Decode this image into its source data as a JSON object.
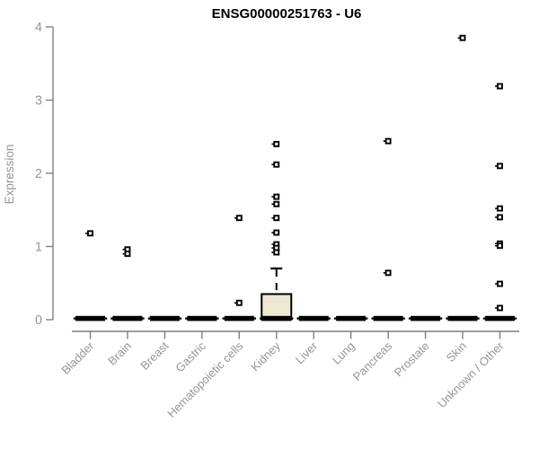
{
  "header": {
    "title": "ENSG00000251763 - U6"
  },
  "chart_data": {
    "type": "box",
    "title": "ENSG00000251763 - U6",
    "xlabel": "",
    "ylabel": "Expression",
    "ylim": [
      0,
      4
    ],
    "yticks": [
      0,
      1,
      2,
      3,
      4
    ],
    "grid": false,
    "legend": "none",
    "categories": [
      "Bladder",
      "Brain",
      "Breast",
      "Gastric",
      "Hematopoietic cells",
      "Kidney",
      "Liver",
      "Lung",
      "Pancreas",
      "Prostate",
      "Skin",
      "Unknown / Other"
    ],
    "boxes": [
      {
        "category": "Bladder",
        "q1": 0,
        "median": 0,
        "q3": 0,
        "whisker_low": 0,
        "whisker_high": 0,
        "outliers": [
          1.18
        ]
      },
      {
        "category": "Brain",
        "q1": 0,
        "median": 0,
        "q3": 0,
        "whisker_low": 0,
        "whisker_high": 0,
        "outliers": [
          0.96,
          0.9
        ]
      },
      {
        "category": "Breast",
        "q1": 0,
        "median": 0,
        "q3": 0,
        "whisker_low": 0,
        "whisker_high": 0,
        "outliers": []
      },
      {
        "category": "Gastric",
        "q1": 0,
        "median": 0,
        "q3": 0,
        "whisker_low": 0,
        "whisker_high": 0,
        "outliers": []
      },
      {
        "category": "Hematopoietic cells",
        "q1": 0,
        "median": 0,
        "q3": 0,
        "whisker_low": 0,
        "whisker_high": 0,
        "outliers": [
          1.39,
          0.23
        ]
      },
      {
        "category": "Kidney",
        "q1": 0,
        "median": 0.02,
        "q3": 0.35,
        "whisker_low": 0,
        "whisker_high": 0.7,
        "outliers": [
          2.4,
          2.12,
          1.68,
          1.58,
          1.39,
          1.19,
          1.03,
          0.98,
          0.92
        ]
      },
      {
        "category": "Liver",
        "q1": 0,
        "median": 0,
        "q3": 0,
        "whisker_low": 0,
        "whisker_high": 0,
        "outliers": []
      },
      {
        "category": "Lung",
        "q1": 0,
        "median": 0,
        "q3": 0,
        "whisker_low": 0,
        "whisker_high": 0,
        "outliers": []
      },
      {
        "category": "Pancreas",
        "q1": 0,
        "median": 0,
        "q3": 0,
        "whisker_low": 0,
        "whisker_high": 0,
        "outliers": [
          2.44,
          0.64
        ]
      },
      {
        "category": "Prostate",
        "q1": 0,
        "median": 0,
        "q3": 0,
        "whisker_low": 0,
        "whisker_high": 0,
        "outliers": []
      },
      {
        "category": "Skin",
        "q1": 0,
        "median": 0,
        "q3": 0,
        "whisker_low": 0,
        "whisker_high": 0,
        "outliers": [
          3.85
        ]
      },
      {
        "category": "Unknown / Other",
        "q1": 0,
        "median": 0,
        "q3": 0,
        "whisker_low": 0,
        "whisker_high": 0,
        "outliers": [
          3.19,
          2.1,
          1.52,
          1.4,
          1.04,
          1.01,
          0.49,
          0.16
        ]
      }
    ],
    "colors": {
      "background": "#FFFFFF",
      "title": "#000000",
      "axis": "#7F7F7F",
      "labels": "#969696",
      "box_fill": "#EDE8D2",
      "box_stroke": "#000000",
      "marker_fill": "#FFFFFF",
      "marker_stroke": "#000000"
    }
  }
}
